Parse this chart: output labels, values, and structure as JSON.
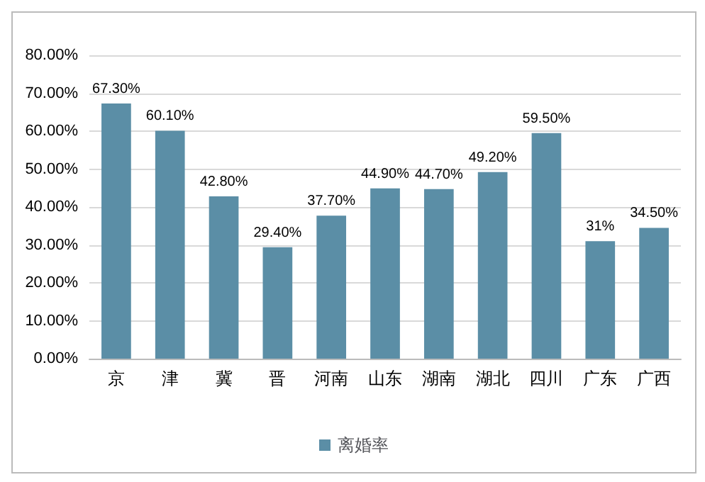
{
  "chart_data": {
    "type": "bar",
    "categories": [
      "京",
      "津",
      "冀",
      "晋",
      "河南",
      "山东",
      "湖南",
      "湖北",
      "四川",
      "广东",
      "广西"
    ],
    "series": [
      {
        "name": "离婚率",
        "color": "#5b8ea6",
        "values": [
          67.3,
          60.1,
          42.8,
          29.4,
          37.7,
          44.9,
          44.7,
          49.2,
          59.5,
          31,
          34.5
        ],
        "value_labels": [
          "67.30%",
          "60.10%",
          "42.80%",
          "29.40%",
          "37.70%",
          "44.90%",
          "44.70%",
          "49.20%",
          "59.50%",
          "31%",
          "34.50%"
        ]
      }
    ],
    "ylim": [
      0,
      80
    ],
    "yticks": [
      {
        "value": 0,
        "label": "0.00%"
      },
      {
        "value": 10,
        "label": "10.00%"
      },
      {
        "value": 20,
        "label": "20.00%"
      },
      {
        "value": 30,
        "label": "30.00%"
      },
      {
        "value": 40,
        "label": "40.00%"
      },
      {
        "value": 50,
        "label": "50.00%"
      },
      {
        "value": 60,
        "label": "60.00%"
      },
      {
        "value": 70,
        "label": "70.00%"
      },
      {
        "value": 80,
        "label": "80.00%"
      }
    ],
    "grid": "y",
    "legend": "bottom"
  }
}
